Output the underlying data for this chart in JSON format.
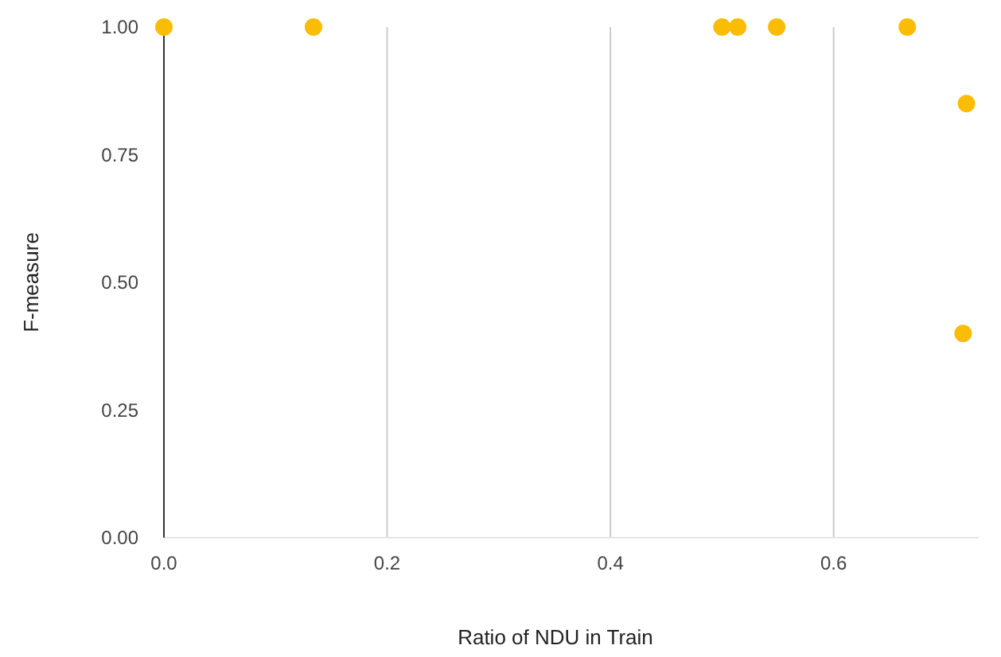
{
  "chart_data": {
    "type": "scatter",
    "xlabel": "Ratio of NDU in Train",
    "ylabel": "F-measure",
    "x": [
      0.0,
      0.134,
      0.5,
      0.514,
      0.549,
      0.666,
      0.719,
      0.716
    ],
    "series": [
      {
        "color": "#fbbc04",
        "values": [
          1.0,
          1.0,
          1.0,
          1.0,
          1.0,
          1.0,
          0.85,
          0.4
        ]
      }
    ],
    "xlim": [
      0,
      0.73
    ],
    "xticks": [
      {
        "value": 0,
        "label": "0.0"
      },
      0.2,
      0.4,
      0.6
    ],
    "ylim": [
      0,
      1
    ],
    "yticks": [
      {
        "value": 0,
        "label": "0.00"
      },
      {
        "value": 0.25,
        "label": "0.25"
      },
      {
        "value": 0.5,
        "label": "0.50"
      },
      {
        "value": 0.75,
        "label": "0.75"
      },
      {
        "value": 1,
        "label": "1.00"
      }
    ],
    "grid": "x",
    "marker": "circle"
  }
}
